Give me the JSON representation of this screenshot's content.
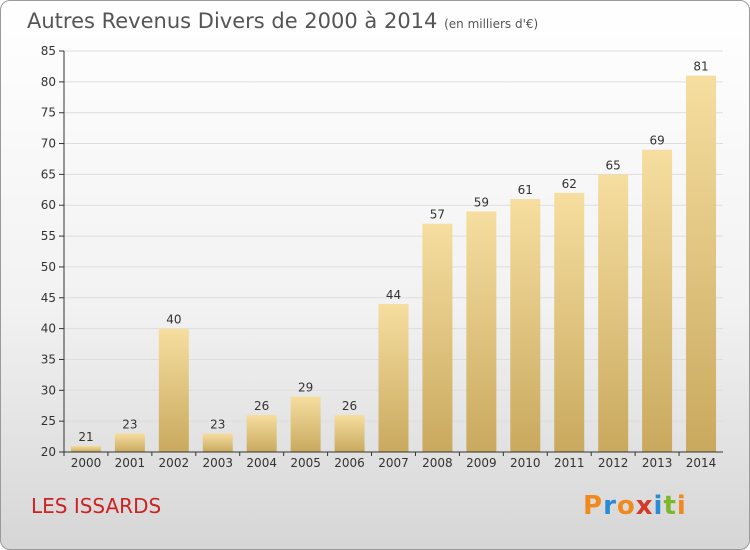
{
  "header": {
    "title": "Autres Revenus Divers de 2000 à 2014",
    "subtitle": "(en milliers d'€)"
  },
  "footer": {
    "place": "LES ISSARDS",
    "logo": "Proxiti"
  },
  "colors": {
    "bar_light": "#f6dea0",
    "bar_dark": "#c9a95e",
    "place_text": "#cc2222",
    "axis": "#333333",
    "grid": "#dddddd",
    "logo_letters": [
      "#f08a1c",
      "#2a8ad4",
      "#f08a1c",
      "#d43a2a",
      "#2a8ad4",
      "#7cb82a",
      "#f08a1c"
    ]
  },
  "chart_data": {
    "type": "bar",
    "title": "Autres Revenus Divers de 2000 à 2014",
    "subtitle": "(en milliers d'€)",
    "xlabel": "",
    "ylabel": "",
    "categories": [
      "2000",
      "2001",
      "2002",
      "2003",
      "2004",
      "2005",
      "2006",
      "2007",
      "2008",
      "2009",
      "2010",
      "2011",
      "2012",
      "2013",
      "2014"
    ],
    "values": [
      21,
      23,
      40,
      23,
      26,
      29,
      26,
      44,
      57,
      59,
      61,
      62,
      65,
      69,
      81
    ],
    "ylim": [
      20,
      85
    ],
    "yticks": [
      20,
      25,
      30,
      35,
      40,
      45,
      50,
      55,
      60,
      65,
      70,
      75,
      80,
      85
    ],
    "grid": true,
    "data_labels": true
  }
}
